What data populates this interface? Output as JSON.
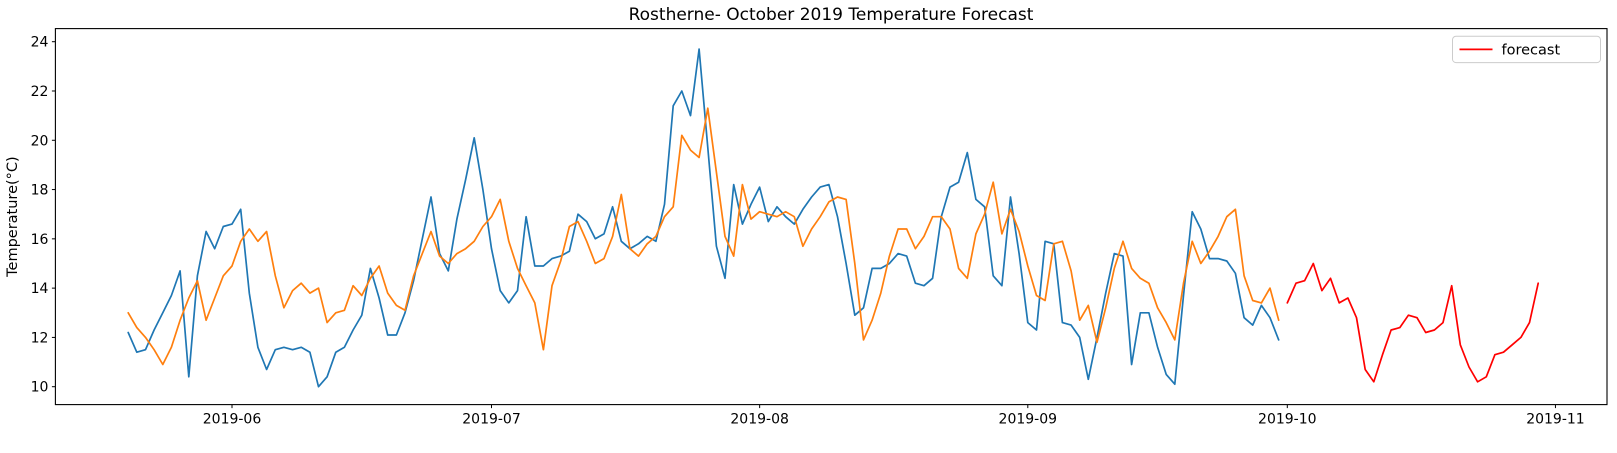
{
  "chart_data": {
    "type": "line",
    "title": "Rostherne- October 2019 Temperature Forecast",
    "xlabel": "",
    "ylabel": "Temperature(°C)",
    "grid": false,
    "ylim": [
      9.3,
      24.5
    ],
    "yticks": [
      10,
      12,
      14,
      16,
      18,
      20,
      22,
      24
    ],
    "xticks": [
      "2019-06",
      "2019-07",
      "2019-08",
      "2019-09",
      "2019-10",
      "2019-11"
    ],
    "legend_position": "upper right",
    "legend": [
      {
        "label": "forecast",
        "color": "#ff0000"
      }
    ],
    "series": [
      {
        "id": "series_blue",
        "label": "",
        "color": "#1f77b4",
        "start_date": "2019-05-20",
        "values": [
          12.2,
          11.4,
          11.5,
          12.3,
          13.0,
          13.7,
          14.7,
          10.4,
          14.5,
          16.3,
          15.6,
          16.5,
          16.6,
          17.2,
          13.8,
          11.6,
          10.7,
          11.5,
          11.6,
          11.5,
          11.6,
          11.4,
          10.0,
          10.4,
          11.4,
          11.6,
          12.3,
          12.9,
          14.8,
          13.6,
          12.1,
          12.1,
          13.0,
          14.3,
          16.0,
          17.7,
          15.4,
          14.7,
          16.8,
          18.4,
          20.1,
          18.0,
          15.6,
          13.9,
          13.4,
          13.9,
          16.9,
          14.9,
          14.9,
          15.2,
          15.3,
          15.5,
          17.0,
          16.7,
          16.0,
          16.2,
          17.3,
          15.9,
          15.6,
          15.8,
          16.1,
          15.9,
          17.4,
          21.4,
          22.0,
          21.0,
          23.7,
          19.7,
          15.7,
          14.4,
          18.2,
          16.6,
          17.4,
          18.1,
          16.7,
          17.3,
          16.9,
          16.6,
          17.2,
          17.7,
          18.1,
          18.2,
          16.9,
          15.0,
          12.9,
          13.2,
          14.8,
          14.8,
          15.0,
          15.4,
          15.3,
          14.2,
          14.1,
          14.4,
          16.9,
          18.1,
          18.3,
          19.5,
          17.6,
          17.3,
          14.5,
          14.1,
          17.7,
          15.4,
          12.6,
          12.3,
          15.9,
          15.8,
          12.6,
          12.5,
          12.0,
          10.3,
          12.0,
          13.8,
          15.4,
          15.3,
          10.9,
          13.0,
          13.0,
          11.6,
          10.5,
          10.1,
          13.7,
          17.1,
          16.4,
          15.2,
          15.2,
          15.1,
          14.6,
          12.8,
          12.5,
          13.3,
          12.8,
          11.9
        ]
      },
      {
        "id": "series_orange",
        "label": "",
        "color": "#ff7f0e",
        "start_date": "2019-05-20",
        "values": [
          13.0,
          12.4,
          12.0,
          11.5,
          10.9,
          11.6,
          12.7,
          13.6,
          14.3,
          12.7,
          13.6,
          14.5,
          14.9,
          15.9,
          16.4,
          15.9,
          16.3,
          14.5,
          13.2,
          13.9,
          14.2,
          13.8,
          14.0,
          12.6,
          13.0,
          13.1,
          14.1,
          13.7,
          14.4,
          14.9,
          13.8,
          13.3,
          13.1,
          14.5,
          15.4,
          16.3,
          15.3,
          15.0,
          15.4,
          15.6,
          15.9,
          16.5,
          16.9,
          17.6,
          15.9,
          14.8,
          14.1,
          13.4,
          11.5,
          14.1,
          15.1,
          16.5,
          16.7,
          15.9,
          15.0,
          15.2,
          16.1,
          17.8,
          15.6,
          15.3,
          15.8,
          16.1,
          16.9,
          17.3,
          20.2,
          19.6,
          19.3,
          21.3,
          18.7,
          16.1,
          15.3,
          18.2,
          16.8,
          17.1,
          17.0,
          16.9,
          17.1,
          16.9,
          15.7,
          16.4,
          16.9,
          17.5,
          17.7,
          17.6,
          15.0,
          11.9,
          12.7,
          13.8,
          15.3,
          16.4,
          16.4,
          15.6,
          16.1,
          16.9,
          16.9,
          16.4,
          14.8,
          14.4,
          16.2,
          17.0,
          18.3,
          16.2,
          17.2,
          16.3,
          14.9,
          13.7,
          13.5,
          15.8,
          15.9,
          14.7,
          12.7,
          13.3,
          11.8,
          13.2,
          14.8,
          15.9,
          14.8,
          14.4,
          14.2,
          13.2,
          12.6,
          11.9,
          14.2,
          15.9,
          15.0,
          15.5,
          16.1,
          16.9,
          17.2,
          14.5,
          13.5,
          13.4,
          14.0,
          12.7
        ]
      },
      {
        "id": "forecast",
        "label": "forecast",
        "color": "#ff0000",
        "start_date": "2019-10-01",
        "values": [
          13.4,
          14.2,
          14.3,
          15.0,
          13.9,
          14.4,
          13.4,
          13.6,
          12.8,
          10.7,
          10.2,
          11.3,
          12.3,
          12.4,
          12.9,
          12.8,
          12.2,
          12.3,
          12.6,
          14.1,
          11.7,
          10.8,
          10.2,
          10.4,
          11.3,
          11.4,
          11.7,
          12.0,
          12.6,
          14.2
        ]
      }
    ]
  }
}
